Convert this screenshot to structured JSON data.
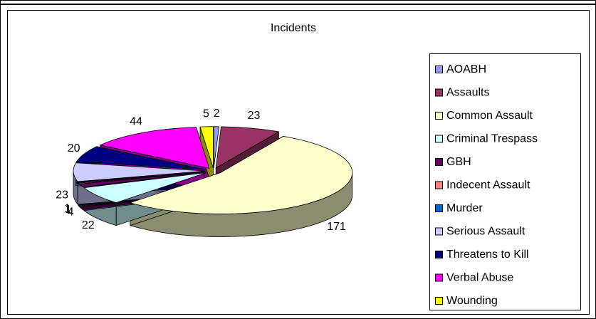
{
  "chart_data": {
    "type": "pie",
    "title": "Incidents",
    "categories": [
      "AOABH",
      "Assaults",
      "Common Assault",
      "Criminal Trespass",
      "GBH",
      "Indecent Assault",
      "Murder",
      "Serious Assault",
      "Threatens to Kill",
      "Verbal Abuse",
      "Wounding"
    ],
    "values": [
      2,
      23,
      171,
      22,
      4,
      1,
      1,
      23,
      20,
      44,
      5
    ],
    "colors": [
      "#9999ff",
      "#993366",
      "#ffffcc",
      "#ccffff",
      "#660066",
      "#ff8080",
      "#0066cc",
      "#ccccff",
      "#000080",
      "#ff00ff",
      "#ffff00"
    ],
    "legend": "right"
  }
}
